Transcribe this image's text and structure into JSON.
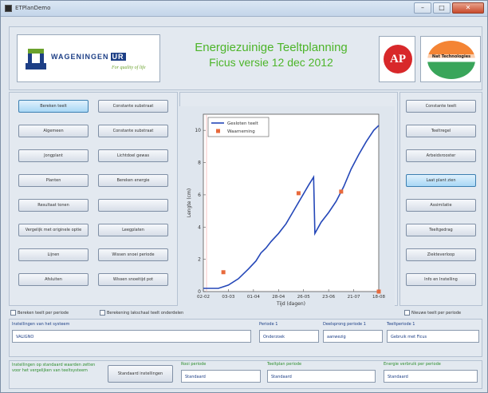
{
  "window": {
    "title": "ETPlanDemo",
    "controls": {
      "minimize": "–",
      "maximize": "□",
      "close": "✕"
    }
  },
  "header": {
    "logo_wordmark": "WAGENINGEN",
    "logo_ur": "UR",
    "logo_tagline": "For quality of life",
    "title_line1": "Energiezuinige Teeltplanning",
    "title_line2": "Ficus versie 12 dec 2012",
    "logo_ap": "AP",
    "logo_nt": "Nat Technologies"
  },
  "left_buttons": [
    "Bereken teelt",
    "Constante substraat",
    "Algemeen",
    "Constante substraat",
    "Jongplant",
    "Lichtdoel gewas",
    "Planten",
    "Bereken energie",
    "Resultaat tonen",
    "",
    "Vergelijk met originele optie",
    "Leegplaten",
    "Lijnen",
    "Wissen snoei periode",
    "Afsluiten",
    "Wissen snoeitijd pot"
  ],
  "right_buttons": [
    "Constante teelt",
    "Teeltregel",
    "Arbeidsrooster",
    "Laat plant zien",
    "Assimilatie",
    "Teeltgedrag",
    "Ziekteverloop",
    "Info en Instelling"
  ],
  "chart_data": {
    "type": "line",
    "title": "",
    "xlabel": "Tijd (dagen)",
    "ylabel": "Lengte (cm)",
    "ylim": [
      0,
      11
    ],
    "yticks": [
      "0",
      "2",
      "4",
      "6",
      "8",
      "10"
    ],
    "xticks": [
      "02-02",
      "03-03",
      "01-04",
      "28-04",
      "26-05",
      "23-06",
      "21-07",
      "18-08"
    ],
    "grid": false,
    "legend_position": "top-left",
    "series": [
      {
        "name": "Gesloten teelt",
        "color": "#2447b8",
        "points": [
          [
            0.0,
            0.2
          ],
          [
            0.6,
            0.2
          ],
          [
            1.0,
            0.4
          ],
          [
            1.4,
            0.8
          ],
          [
            1.8,
            1.4
          ],
          [
            2.1,
            1.9
          ],
          [
            2.3,
            2.4
          ],
          [
            2.5,
            2.7
          ],
          [
            2.7,
            3.1
          ],
          [
            3.0,
            3.6
          ],
          [
            3.3,
            4.2
          ],
          [
            3.6,
            5.0
          ],
          [
            3.9,
            5.8
          ],
          [
            4.2,
            6.6
          ],
          [
            4.4,
            7.1
          ],
          [
            4.45,
            3.6
          ],
          [
            4.7,
            4.3
          ],
          [
            5.0,
            4.9
          ],
          [
            5.3,
            5.6
          ],
          [
            5.6,
            6.5
          ],
          [
            5.9,
            7.6
          ],
          [
            6.2,
            8.5
          ],
          [
            6.5,
            9.3
          ],
          [
            6.8,
            10.0
          ],
          [
            7.0,
            10.3
          ]
        ]
      },
      {
        "name": "Waarneming",
        "color": "#e86a3c",
        "points": [
          [
            0.8,
            1.2
          ],
          [
            3.8,
            6.1
          ],
          [
            5.5,
            6.2
          ],
          [
            7.0,
            0.0
          ]
        ]
      }
    ]
  },
  "checkboxes": [
    "Bereken teelt per periode",
    "Berekening lakschaal teelt onderdelen",
    "Nieuwe teelt per periode"
  ],
  "fields_row1": [
    {
      "label": "Instellingen van het systeem",
      "value": "VALIGNO"
    },
    {
      "label": "Periode 1",
      "value": "Onderzoek"
    },
    {
      "label": "Deelsprong periode 1",
      "value": "aanwezig"
    },
    {
      "label": "Teeltperiode 1",
      "value": "Gebruik met Ficus"
    }
  ],
  "fields_row2_intro": "Instellingen op standaard waarden zetten voor het vergelijken van teeltsysteem",
  "standard_button": "Standaard instellingen",
  "fields_row2": [
    {
      "label": "Rooi periode",
      "value": "Standaard"
    },
    {
      "label": "Teeltplan periode",
      "value": "Standaard"
    },
    {
      "label": "Energie verbruik per periode",
      "value": "Standaard"
    }
  ]
}
